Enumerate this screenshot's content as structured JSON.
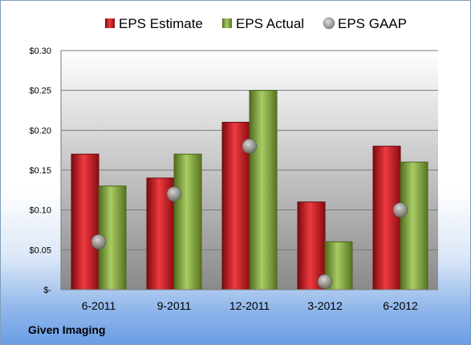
{
  "company_label": "Given Imaging",
  "colors": {
    "estimate": "#c0141c",
    "actual": "#7fa43a",
    "gaap": "#9a9a9a",
    "plot_bg_top": "#ffffff",
    "plot_bg_bottom": "#8a8a8a"
  },
  "chart_data": {
    "type": "bar",
    "categories": [
      "6-2011",
      "9-2011",
      "12-2011",
      "3-2012",
      "6-2012"
    ],
    "series": [
      {
        "name": "EPS Estimate",
        "kind": "bar",
        "values": [
          0.17,
          0.14,
          0.21,
          0.11,
          0.18
        ]
      },
      {
        "name": "EPS Actual",
        "kind": "bar",
        "values": [
          0.13,
          0.17,
          0.25,
          0.06,
          0.16
        ]
      },
      {
        "name": "EPS GAAP",
        "kind": "marker",
        "values": [
          0.06,
          0.12,
          0.18,
          0.01,
          0.1
        ]
      }
    ],
    "yticks": [
      0,
      0.05,
      0.1,
      0.15,
      0.2,
      0.25,
      0.3
    ],
    "ytick_labels": [
      "$-",
      "$0.05",
      "$0.10",
      "$0.15",
      "$0.20",
      "$0.25",
      "$0.30"
    ],
    "ylim": [
      0,
      0.3
    ],
    "grid": true,
    "legend_position": "top"
  }
}
